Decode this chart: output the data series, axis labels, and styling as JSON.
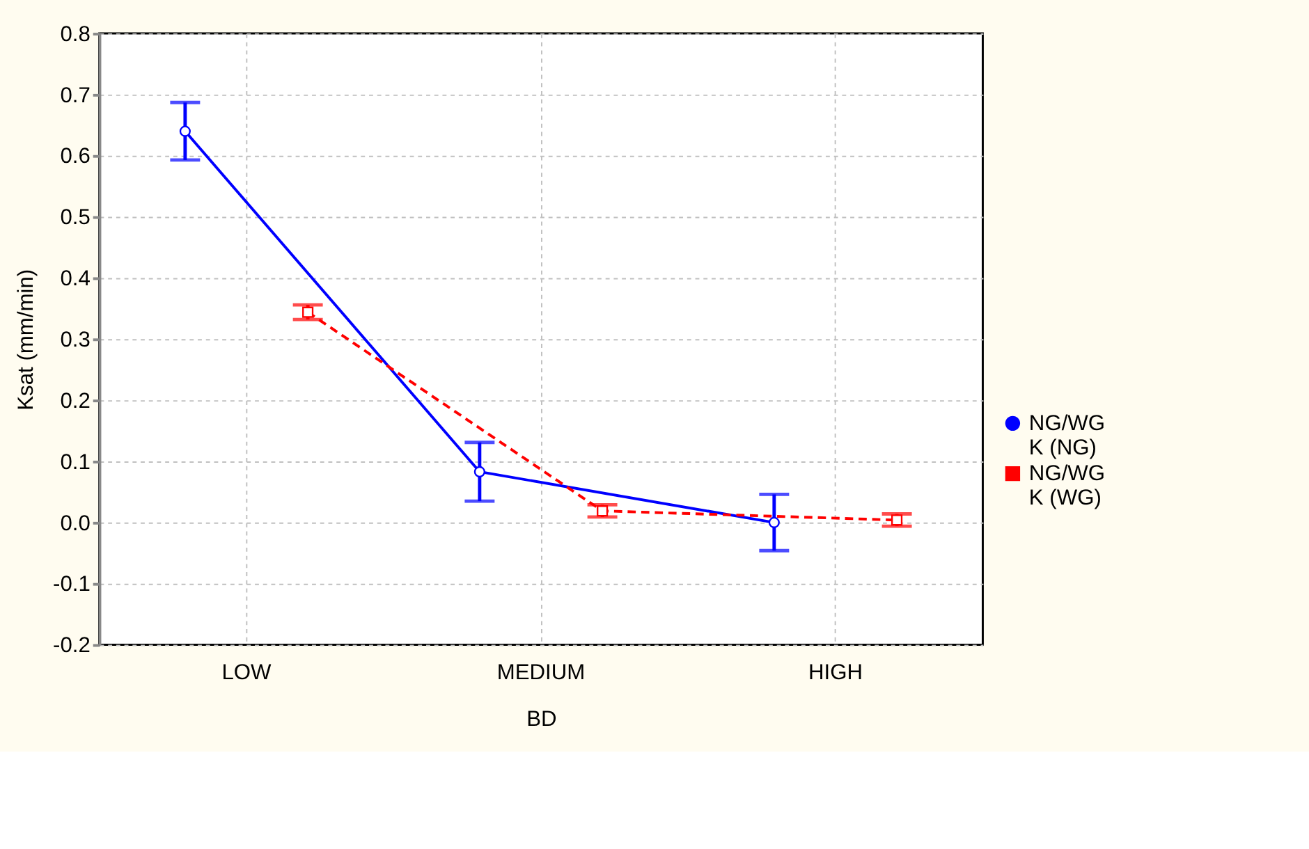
{
  "chart_data": {
    "type": "line",
    "xlabel": "BD",
    "ylabel": "Ksat (mm/min)",
    "categories": [
      "LOW",
      "MEDIUM",
      "HIGH"
    ],
    "series": [
      {
        "name": "NG/WG\nK (NG)",
        "color": "#0000ff",
        "values": [
          0.64,
          0.083,
          0.0
        ],
        "errors": [
          0.047,
          0.048,
          0.046
        ],
        "marker": "circle",
        "line_style": "solid"
      },
      {
        "name": "NG/WG\nK (WG)",
        "color": "#ff0000",
        "values": [
          0.344,
          0.019,
          0.004
        ],
        "errors": [
          0.012,
          0.01,
          0.01
        ],
        "marker": "square",
        "line_style": "dashed"
      }
    ],
    "ylim": [
      -0.2,
      0.8
    ],
    "yticks": [
      {
        "value": -0.2,
        "label": "-0.2"
      },
      {
        "value": -0.1,
        "label": "-0.1"
      },
      {
        "value": 0,
        "label": "0.0"
      },
      {
        "value": 0.1,
        "label": "0.1"
      },
      {
        "value": 0.2,
        "label": "0.2"
      },
      {
        "value": 0.3,
        "label": "0.3"
      },
      {
        "value": 0.4,
        "label": "0.4"
      },
      {
        "value": 0.5,
        "label": "0.5"
      },
      {
        "value": 0.6,
        "label": "0.6"
      },
      {
        "value": 0.7,
        "label": "0.7"
      },
      {
        "value": 0.8,
        "label": "0.8"
      }
    ],
    "grid": true,
    "legend": "bottom right"
  }
}
